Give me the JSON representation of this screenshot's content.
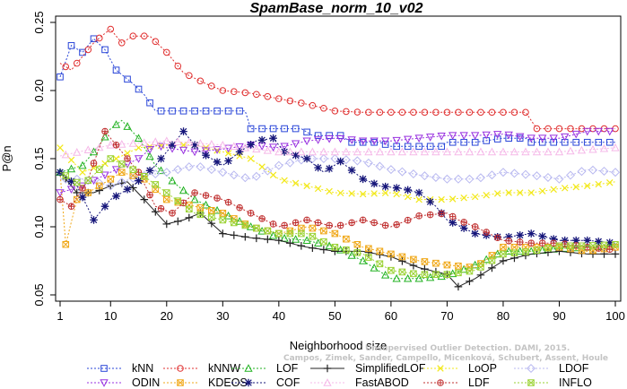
{
  "chart_data": {
    "type": "line",
    "title": "SpamBase_norm_10_v02",
    "xlabel": "Neighborhood size",
    "ylabel": "P@n",
    "xlim": [
      1,
      100
    ],
    "ylim": [
      0.05,
      0.25
    ],
    "xticks": [
      1,
      10,
      20,
      30,
      40,
      50,
      60,
      70,
      80,
      90,
      100
    ],
    "yticks": [
      0.05,
      0.1,
      0.15,
      0.2,
      0.25
    ],
    "grid": false,
    "legend_position": "bottom",
    "watermark": [
      "Campos, Zimek, Sander, Campello, Micenková, Schubert, Assent, Houle",
      "Unsupervised Outlier Detection. DAMI, 2015."
    ],
    "series": [
      {
        "name": "kNN",
        "color": "#2a46d8",
        "marker": "square",
        "dash": "2,2",
        "points": [
          [
            1,
            0.21
          ],
          [
            3,
            0.233
          ],
          [
            5,
            0.228
          ],
          [
            7,
            0.238
          ],
          [
            9,
            0.23
          ],
          [
            11,
            0.215
          ],
          [
            14,
            0.205
          ],
          [
            16,
            0.197
          ],
          [
            18,
            0.185
          ],
          [
            25,
            0.185
          ],
          [
            34,
            0.185
          ],
          [
            35,
            0.172
          ],
          [
            44,
            0.172
          ],
          [
            46,
            0.167
          ],
          [
            51,
            0.167
          ],
          [
            53,
            0.162
          ],
          [
            58,
            0.162
          ],
          [
            60,
            0.159
          ],
          [
            69,
            0.159
          ],
          [
            70,
            0.162
          ],
          [
            75,
            0.162
          ],
          [
            80,
            0.165
          ],
          [
            84,
            0.165
          ],
          [
            85,
            0.162
          ],
          [
            100,
            0.162
          ]
        ]
      },
      {
        "name": "kNNW",
        "color": "#e03030",
        "marker": "circle",
        "dash": "2,2",
        "points": [
          [
            1,
            0.22
          ],
          [
            3,
            0.215
          ],
          [
            5,
            0.225
          ],
          [
            7,
            0.235
          ],
          [
            9,
            0.242
          ],
          [
            10,
            0.245
          ],
          [
            12,
            0.235
          ],
          [
            14,
            0.24
          ],
          [
            17,
            0.24
          ],
          [
            20,
            0.228
          ],
          [
            23,
            0.213
          ],
          [
            27,
            0.205
          ],
          [
            30,
            0.2
          ],
          [
            35,
            0.198
          ],
          [
            40,
            0.194
          ],
          [
            45,
            0.19
          ],
          [
            50,
            0.185
          ],
          [
            55,
            0.184
          ],
          [
            70,
            0.184
          ],
          [
            80,
            0.184
          ],
          [
            84,
            0.184
          ],
          [
            86,
            0.172
          ],
          [
            100,
            0.172
          ]
        ]
      },
      {
        "name": "LOF",
        "color": "#22b222",
        "marker": "triangle",
        "dash": "2,2",
        "points": [
          [
            1,
            0.14
          ],
          [
            5,
            0.145
          ],
          [
            8,
            0.16
          ],
          [
            10,
            0.172
          ],
          [
            12,
            0.178
          ],
          [
            15,
            0.165
          ],
          [
            18,
            0.145
          ],
          [
            22,
            0.13
          ],
          [
            25,
            0.12
          ],
          [
            30,
            0.11
          ],
          [
            35,
            0.1
          ],
          [
            40,
            0.092
          ],
          [
            45,
            0.09
          ],
          [
            50,
            0.085
          ],
          [
            55,
            0.075
          ],
          [
            60,
            0.062
          ],
          [
            65,
            0.062
          ],
          [
            70,
            0.064
          ],
          [
            75,
            0.072
          ],
          [
            80,
            0.082
          ],
          [
            85,
            0.082
          ],
          [
            90,
            0.084
          ],
          [
            100,
            0.086
          ]
        ]
      },
      {
        "name": "SimplifiedLOF",
        "color": "#222222",
        "marker": "plus",
        "dash": "",
        "points": [
          [
            1,
            0.14
          ],
          [
            4,
            0.125
          ],
          [
            7,
            0.125
          ],
          [
            10,
            0.13
          ],
          [
            13,
            0.133
          ],
          [
            16,
            0.12
          ],
          [
            20,
            0.102
          ],
          [
            23,
            0.105
          ],
          [
            26,
            0.11
          ],
          [
            30,
            0.095
          ],
          [
            35,
            0.092
          ],
          [
            40,
            0.09
          ],
          [
            45,
            0.085
          ],
          [
            50,
            0.082
          ],
          [
            55,
            0.082
          ],
          [
            60,
            0.078
          ],
          [
            65,
            0.07
          ],
          [
            70,
            0.065
          ],
          [
            72,
            0.056
          ],
          [
            75,
            0.062
          ],
          [
            80,
            0.075
          ],
          [
            85,
            0.08
          ],
          [
            90,
            0.082
          ],
          [
            95,
            0.08
          ],
          [
            100,
            0.08
          ]
        ]
      },
      {
        "name": "LoOP",
        "color": "#f2e818",
        "marker": "x",
        "dash": "2,2",
        "points": [
          [
            1,
            0.158
          ],
          [
            5,
            0.14
          ],
          [
            10,
            0.148
          ],
          [
            15,
            0.158
          ],
          [
            20,
            0.16
          ],
          [
            25,
            0.16
          ],
          [
            30,
            0.155
          ],
          [
            35,
            0.15
          ],
          [
            40,
            0.135
          ],
          [
            45,
            0.13
          ],
          [
            50,
            0.125
          ],
          [
            55,
            0.124
          ],
          [
            60,
            0.125
          ],
          [
            65,
            0.12
          ],
          [
            70,
            0.12
          ],
          [
            75,
            0.122
          ],
          [
            80,
            0.125
          ],
          [
            85,
            0.125
          ],
          [
            90,
            0.128
          ],
          [
            95,
            0.13
          ],
          [
            100,
            0.133
          ]
        ]
      },
      {
        "name": "LDOF",
        "color": "#b8b8f0",
        "marker": "diamond",
        "dash": "2,2",
        "points": [
          [
            1,
            0.135
          ],
          [
            5,
            0.135
          ],
          [
            10,
            0.13
          ],
          [
            15,
            0.137
          ],
          [
            20,
            0.14
          ],
          [
            25,
            0.145
          ],
          [
            30,
            0.14
          ],
          [
            35,
            0.135
          ],
          [
            40,
            0.145
          ],
          [
            45,
            0.15
          ],
          [
            50,
            0.15
          ],
          [
            55,
            0.148
          ],
          [
            60,
            0.142
          ],
          [
            65,
            0.138
          ],
          [
            70,
            0.135
          ],
          [
            75,
            0.135
          ],
          [
            80,
            0.14
          ],
          [
            85,
            0.138
          ],
          [
            90,
            0.135
          ],
          [
            95,
            0.142
          ],
          [
            100,
            0.14
          ]
        ]
      },
      {
        "name": "ODIN",
        "color": "#9932e0",
        "marker": "triangle-down",
        "dash": "2,2",
        "points": [
          [
            1,
            0.125
          ],
          [
            5,
            0.13
          ],
          [
            10,
            0.14
          ],
          [
            15,
            0.15
          ],
          [
            18,
            0.16
          ],
          [
            20,
            0.158
          ],
          [
            25,
            0.155
          ],
          [
            30,
            0.157
          ],
          [
            35,
            0.16
          ],
          [
            40,
            0.158
          ],
          [
            45,
            0.163
          ],
          [
            50,
            0.165
          ],
          [
            55,
            0.163
          ],
          [
            60,
            0.163
          ],
          [
            65,
            0.165
          ],
          [
            70,
            0.167
          ],
          [
            75,
            0.167
          ],
          [
            80,
            0.168
          ],
          [
            85,
            0.165
          ],
          [
            90,
            0.165
          ],
          [
            95,
            0.17
          ],
          [
            100,
            0.17
          ]
        ]
      },
      {
        "name": "KDEOS",
        "color": "#f0a818",
        "marker": "square-x",
        "dash": "2,2",
        "points": [
          [
            1,
            0.14
          ],
          [
            2,
            0.087
          ],
          [
            4,
            0.12
          ],
          [
            8,
            0.13
          ],
          [
            12,
            0.14
          ],
          [
            16,
            0.135
          ],
          [
            20,
            0.12
          ],
          [
            25,
            0.115
          ],
          [
            30,
            0.11
          ],
          [
            35,
            0.1
          ],
          [
            40,
            0.095
          ],
          [
            45,
            0.1
          ],
          [
            50,
            0.095
          ],
          [
            55,
            0.085
          ],
          [
            60,
            0.08
          ],
          [
            65,
            0.075
          ],
          [
            70,
            0.072
          ],
          [
            75,
            0.07
          ],
          [
            80,
            0.085
          ],
          [
            85,
            0.085
          ],
          [
            90,
            0.085
          ],
          [
            95,
            0.082
          ],
          [
            100,
            0.085
          ]
        ]
      },
      {
        "name": "COF",
        "color": "#16167a",
        "marker": "star",
        "dash": "2,2",
        "points": [
          [
            1,
            0.14
          ],
          [
            4,
            0.13
          ],
          [
            7,
            0.105
          ],
          [
            10,
            0.12
          ],
          [
            14,
            0.13
          ],
          [
            18,
            0.145
          ],
          [
            21,
            0.16
          ],
          [
            23,
            0.17
          ],
          [
            26,
            0.155
          ],
          [
            30,
            0.145
          ],
          [
            33,
            0.155
          ],
          [
            36,
            0.163
          ],
          [
            39,
            0.165
          ],
          [
            41,
            0.155
          ],
          [
            45,
            0.15
          ],
          [
            48,
            0.14
          ],
          [
            51,
            0.148
          ],
          [
            55,
            0.135
          ],
          [
            58,
            0.13
          ],
          [
            62,
            0.128
          ],
          [
            65,
            0.125
          ],
          [
            68,
            0.115
          ],
          [
            70,
            0.105
          ],
          [
            75,
            0.095
          ],
          [
            80,
            0.092
          ],
          [
            85,
            0.095
          ],
          [
            90,
            0.09
          ],
          [
            95,
            0.09
          ],
          [
            100,
            0.088
          ]
        ]
      },
      {
        "name": "FastABOD",
        "color": "#f5b8e8",
        "marker": "triangle",
        "dash": "2,2",
        "points": [
          [
            1,
            0.152
          ],
          [
            10,
            0.16
          ],
          [
            20,
            0.163
          ],
          [
            30,
            0.16
          ],
          [
            40,
            0.155
          ],
          [
            50,
            0.155
          ],
          [
            60,
            0.155
          ],
          [
            70,
            0.155
          ],
          [
            80,
            0.155
          ],
          [
            90,
            0.155
          ],
          [
            100,
            0.158
          ]
        ]
      },
      {
        "name": "LDF",
        "color": "#c03030",
        "marker": "circle-plus",
        "dash": "2,2",
        "points": [
          [
            1,
            0.12
          ],
          [
            3,
            0.115
          ],
          [
            6,
            0.135
          ],
          [
            9,
            0.17
          ],
          [
            12,
            0.155
          ],
          [
            15,
            0.14
          ],
          [
            18,
            0.115
          ],
          [
            21,
            0.11
          ],
          [
            25,
            0.125
          ],
          [
            30,
            0.12
          ],
          [
            35,
            0.11
          ],
          [
            40,
            0.1
          ],
          [
            45,
            0.105
          ],
          [
            50,
            0.1
          ],
          [
            55,
            0.105
          ],
          [
            60,
            0.1
          ],
          [
            65,
            0.108
          ],
          [
            70,
            0.11
          ],
          [
            72,
            0.105
          ],
          [
            75,
            0.1
          ],
          [
            80,
            0.09
          ],
          [
            85,
            0.088
          ],
          [
            90,
            0.088
          ],
          [
            95,
            0.085
          ],
          [
            100,
            0.083
          ]
        ]
      },
      {
        "name": "INFLO",
        "color": "#9ad232",
        "marker": "square-x",
        "dash": "2,2",
        "points": [
          [
            1,
            0.14
          ],
          [
            5,
            0.13
          ],
          [
            10,
            0.15
          ],
          [
            15,
            0.14
          ],
          [
            20,
            0.125
          ],
          [
            25,
            0.11
          ],
          [
            30,
            0.105
          ],
          [
            35,
            0.1
          ],
          [
            40,
            0.095
          ],
          [
            45,
            0.095
          ],
          [
            50,
            0.085
          ],
          [
            55,
            0.08
          ],
          [
            60,
            0.068
          ],
          [
            65,
            0.065
          ],
          [
            70,
            0.065
          ],
          [
            75,
            0.068
          ],
          [
            80,
            0.08
          ],
          [
            85,
            0.082
          ],
          [
            90,
            0.086
          ],
          [
            95,
            0.086
          ],
          [
            100,
            0.087
          ]
        ]
      }
    ],
    "legend_order": [
      "kNN",
      "kNNW",
      "LOF",
      "SimplifiedLOF",
      "LoOP",
      "LDOF",
      "ODIN",
      "KDEOS",
      "COF",
      "FastABOD",
      "LDF",
      "INFLO"
    ]
  }
}
